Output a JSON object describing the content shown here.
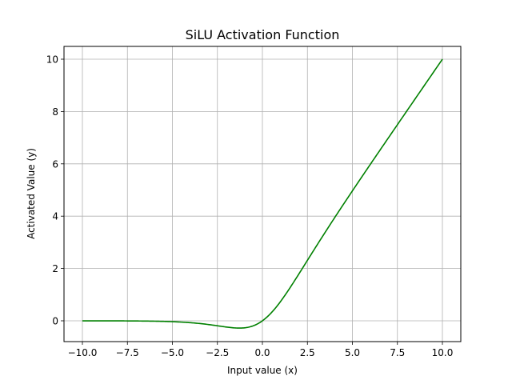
{
  "chart_data": {
    "type": "line",
    "title": "SiLU Activation Function",
    "xlabel": "Input value (x)",
    "ylabel": "Activated Value (y)",
    "xlim": [
      -11.0,
      11.0
    ],
    "ylim": [
      -0.8,
      10.5
    ],
    "grid": true,
    "legend": null,
    "x_ticks": [
      -10.0,
      -7.5,
      -5.0,
      -2.5,
      0.0,
      2.5,
      5.0,
      7.5,
      10.0
    ],
    "x_tick_labels": [
      "−10.0",
      "−7.5",
      "−5.0",
      "−2.5",
      "0.0",
      "2.5",
      "5.0",
      "7.5",
      "10.0"
    ],
    "y_ticks": [
      0,
      2,
      4,
      6,
      8,
      10
    ],
    "y_tick_labels": [
      "0",
      "2",
      "4",
      "6",
      "8",
      "10"
    ],
    "series": [
      {
        "name": "SiLU",
        "color": "#008000",
        "function": "x * sigmoid(x)",
        "x": [
          -10,
          -7.5,
          -5,
          -4,
          -3,
          -2,
          -1.5,
          -1.28,
          -1,
          -0.5,
          0,
          0.5,
          1,
          1.5,
          2,
          2.5,
          3,
          4,
          5,
          6,
          7.5,
          10
        ],
        "y": [
          -0.0005,
          -0.0041,
          -0.0335,
          -0.0719,
          -0.1423,
          -0.2384,
          -0.2738,
          -0.2785,
          -0.2689,
          -0.1888,
          0.0,
          0.3112,
          0.7311,
          1.2263,
          1.7616,
          2.3193,
          2.8577,
          3.9281,
          4.9665,
          5.9852,
          7.4959,
          9.9995
        ]
      }
    ]
  }
}
